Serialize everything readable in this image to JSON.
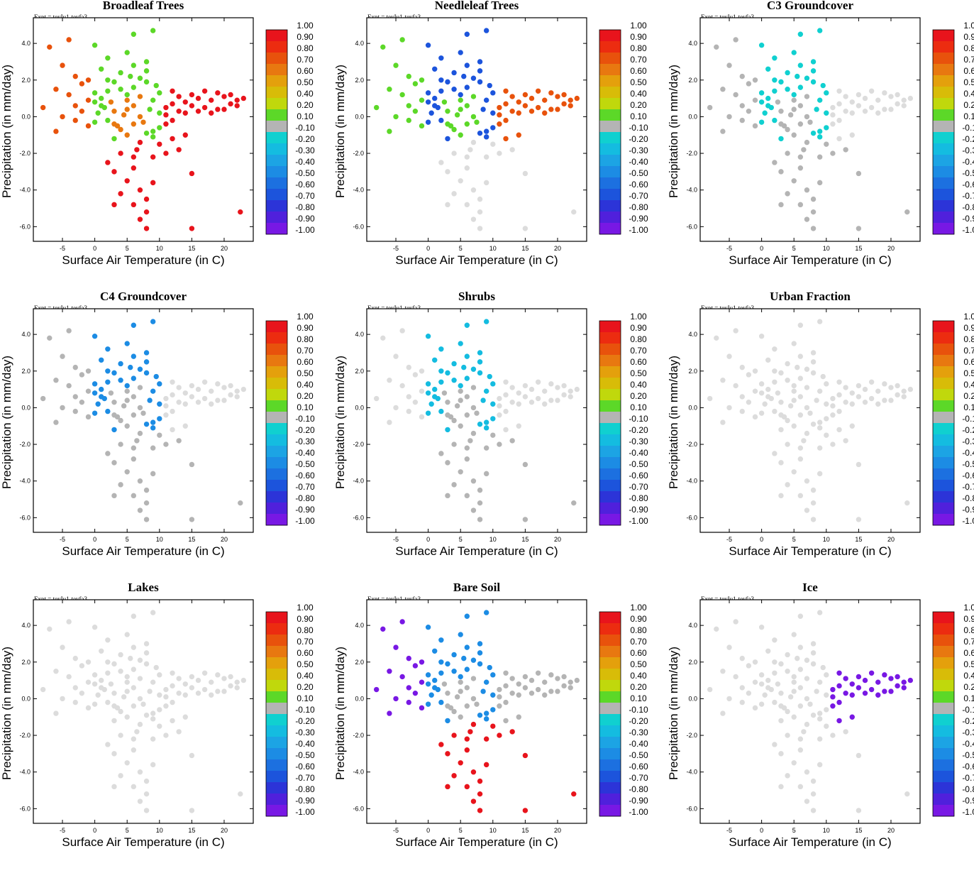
{
  "chart_data": {
    "type": "scatter",
    "experiment_label": "Expt = teyIu1-teyfa3",
    "xlabel": "Surface Air Temperature (in C)",
    "ylabel": "Precipitation (in mm/day)",
    "xlim": [
      -9.5,
      24.5
    ],
    "ylim": [
      -6.8,
      5.4
    ],
    "x_ticks": [
      -5,
      0,
      5,
      10,
      15,
      20
    ],
    "y_ticks": [
      -6.0,
      -4.0,
      -2.0,
      0.0,
      2.0,
      4.0
    ],
    "colorbar": {
      "tick_labels": [
        "1.00",
        "0.90",
        "0.80",
        "0.70",
        "0.60",
        "0.50",
        "0.40",
        "0.20",
        "0.10",
        "-0.10",
        "-0.20",
        "-0.30",
        "-0.40",
        "-0.50",
        "-0.60",
        "-0.70",
        "-0.80",
        "-0.90",
        "-1.00"
      ],
      "bins": [
        {
          "range": [
            0.9,
            1.0
          ],
          "color": "#e8141c"
        },
        {
          "range": [
            0.8,
            0.9
          ],
          "color": "#ec2c10"
        },
        {
          "range": [
            0.7,
            0.8
          ],
          "color": "#e8520c"
        },
        {
          "range": [
            0.6,
            0.7
          ],
          "color": "#e87810"
        },
        {
          "range": [
            0.5,
            0.6
          ],
          "color": "#e4a00c"
        },
        {
          "range": [
            0.4,
            0.5
          ],
          "color": "#d8bc08"
        },
        {
          "range": [
            0.2,
            0.4
          ],
          "color": "#c0d80c"
        },
        {
          "range": [
            0.1,
            0.2
          ],
          "color": "#5cd828"
        },
        {
          "range": [
            -0.1,
            0.1
          ],
          "color": "#b4b4b4"
        },
        {
          "range": [
            -0.2,
            -0.1
          ],
          "color": "#10d0d0"
        },
        {
          "range": [
            -0.3,
            -0.2
          ],
          "color": "#14bce0"
        },
        {
          "range": [
            -0.4,
            -0.3
          ],
          "color": "#1ca4e4"
        },
        {
          "range": [
            -0.5,
            -0.4
          ],
          "color": "#1c8ce4"
        },
        {
          "range": [
            -0.6,
            -0.5
          ],
          "color": "#1c70e0"
        },
        {
          "range": [
            -0.7,
            -0.6
          ],
          "color": "#1c54dc"
        },
        {
          "range": [
            -0.8,
            -0.7
          ],
          "color": "#2c34d8"
        },
        {
          "range": [
            -0.9,
            -0.8
          ],
          "color": "#5020dc"
        },
        {
          "range": [
            -1.0,
            -0.9
          ],
          "color": "#7818e4"
        }
      ],
      "missing_color": "#dcdcdc"
    },
    "panels": [
      {
        "title": "Broadleaf Trees",
        "colors": {
          "neg": "#e8141c",
          "warm": "#e8141c",
          "cold": "#e8520c",
          "center": "#e87810",
          "other": "#5cd828"
        }
      },
      {
        "title": "Needleleaf Trees",
        "colors": {
          "neg": "#dcdcdc",
          "warm": "#e8520c",
          "cold": "#5cd828",
          "center": "#5cd828",
          "other": "#1c54dc"
        }
      },
      {
        "title": "C3 Groundcover",
        "colors": {
          "neg": "#b4b4b4",
          "warm": "#dcdcdc",
          "cold": "#b4b4b4",
          "center": "#b4b4b4",
          "other": "#10d0d0"
        }
      },
      {
        "title": "C4 Groundcover",
        "colors": {
          "neg": "#b4b4b4",
          "warm": "#dcdcdc",
          "cold": "#b4b4b4",
          "center": "#b4b4b4",
          "other": "#1c8ce4"
        }
      },
      {
        "title": "Shrubs",
        "colors": {
          "neg": "#b4b4b4",
          "warm": "#dcdcdc",
          "cold": "#dcdcdc",
          "center": "#b4b4b4",
          "other": "#14bce0"
        }
      },
      {
        "title": "Urban Fraction",
        "colors": {
          "neg": "#dcdcdc",
          "warm": "#dcdcdc",
          "cold": "#dcdcdc",
          "center": "#dcdcdc",
          "other": "#dcdcdc"
        }
      },
      {
        "title": "Lakes",
        "colors": {
          "neg": "#dcdcdc",
          "warm": "#dcdcdc",
          "cold": "#dcdcdc",
          "center": "#dcdcdc",
          "other": "#dcdcdc"
        }
      },
      {
        "title": "Bare Soil",
        "colors": {
          "neg": "#e8141c",
          "warm": "#b4b4b4",
          "cold": "#7818e4",
          "center": "#b4b4b4",
          "other": "#1c8ce4"
        }
      },
      {
        "title": "Ice",
        "colors": {
          "neg": "#dcdcdc",
          "warm": "#7818e4",
          "cold": "#dcdcdc",
          "center": "#dcdcdc",
          "other": "#dcdcdc"
        }
      }
    ],
    "points": [
      [
        -6,
        1.5
      ],
      [
        -5,
        2.8
      ],
      [
        -4,
        1.2
      ],
      [
        -3,
        0.6
      ],
      [
        -2,
        1.8
      ],
      [
        -1,
        0.9
      ],
      [
        0,
        1.3
      ],
      [
        0.5,
        0.2
      ],
      [
        1,
        1.0
      ],
      [
        1.5,
        0.5
      ],
      [
        2,
        -0.2
      ],
      [
        2.5,
        0.8
      ],
      [
        3,
        0.3
      ],
      [
        3.5,
        -0.5
      ],
      [
        4,
        1.5
      ],
      [
        4.5,
        0.1
      ],
      [
        5,
        -1.0
      ],
      [
        5.5,
        2.2
      ],
      [
        6,
        0.6
      ],
      [
        6.5,
        -1.8
      ],
      [
        7,
        1.1
      ],
      [
        7.5,
        -0.3
      ],
      [
        8,
        2.5
      ],
      [
        8.5,
        0.4
      ],
      [
        9,
        -0.8
      ],
      [
        9.5,
        1.7
      ],
      [
        10,
        0.2
      ],
      [
        11,
        0.5
      ],
      [
        12,
        0.7
      ],
      [
        13,
        0.3
      ],
      [
        14,
        0.8
      ],
      [
        15,
        0.6
      ],
      [
        16,
        1.0
      ],
      [
        17,
        0.5
      ],
      [
        18,
        0.9
      ],
      [
        19,
        0.4
      ],
      [
        20,
        1.1
      ],
      [
        21,
        0.7
      ],
      [
        22,
        0.9
      ],
      [
        23,
        1.0
      ],
      [
        -7,
        3.8
      ],
      [
        -4,
        4.2
      ],
      [
        0,
        3.9
      ],
      [
        2,
        3.2
      ],
      [
        5,
        3.5
      ],
      [
        6,
        4.5
      ],
      [
        8,
        3.0
      ],
      [
        9,
        4.7
      ],
      [
        -8,
        0.5
      ],
      [
        -6,
        -0.8
      ],
      [
        2,
        -2.5
      ],
      [
        3,
        -3.0
      ],
      [
        4,
        -2.0
      ],
      [
        5,
        -3.5
      ],
      [
        6,
        -2.8
      ],
      [
        7,
        -4.0
      ],
      [
        8,
        -4.5
      ],
      [
        9,
        -3.6
      ],
      [
        8,
        -5.2
      ],
      [
        7,
        -5.6
      ],
      [
        8,
        -6.1
      ],
      [
        6,
        -4.8
      ],
      [
        4,
        -4.2
      ],
      [
        3,
        -4.8
      ],
      [
        9,
        -2.2
      ],
      [
        10,
        -1.5
      ],
      [
        11,
        -2.0
      ],
      [
        12,
        -1.2
      ],
      [
        13,
        -1.8
      ],
      [
        14,
        -1.0
      ],
      [
        -2,
        0.3
      ],
      [
        -1,
        -0.5
      ],
      [
        0,
        -0.3
      ],
      [
        1,
        0.6
      ],
      [
        3,
        1.9
      ],
      [
        4,
        2.4
      ],
      [
        5,
        1.2
      ],
      [
        6,
        2.8
      ],
      [
        7,
        0.0
      ],
      [
        9,
        0.9
      ],
      [
        10,
        1.3
      ],
      [
        11,
        -0.4
      ],
      [
        12,
        1.4
      ],
      [
        13,
        1.1
      ],
      [
        15,
        1.2
      ],
      [
        16,
        0.3
      ],
      [
        17,
        1.4
      ],
      [
        18,
        0.2
      ],
      [
        19,
        1.3
      ],
      [
        20,
        0.4
      ],
      [
        21,
        1.2
      ],
      [
        22,
        0.6
      ],
      [
        15,
        -3.1
      ],
      [
        22.5,
        -5.2
      ],
      [
        15,
        -6.1
      ],
      [
        -3,
        2.2
      ],
      [
        1,
        2.6
      ],
      [
        2,
        1.4
      ],
      [
        6,
        1.6
      ],
      [
        8,
        1.9
      ],
      [
        5,
        0.9
      ],
      [
        4,
        -0.7
      ],
      [
        3,
        -1.2
      ],
      [
        6,
        -0.4
      ],
      [
        7,
        -1.4
      ],
      [
        8,
        -0.9
      ],
      [
        10,
        -0.6
      ],
      [
        11,
        0.1
      ],
      [
        12,
        -0.2
      ],
      [
        14,
        0.2
      ],
      [
        -5,
        0.0
      ],
      [
        -3,
        -0.2
      ],
      [
        -1,
        2.0
      ],
      [
        0,
        0.8
      ],
      [
        2,
        2.0
      ],
      [
        3,
        -0.4
      ],
      [
        5,
        0.4
      ],
      [
        6,
        -2.2
      ],
      [
        7,
        2.1
      ],
      [
        9,
        -1.1
      ]
    ]
  }
}
